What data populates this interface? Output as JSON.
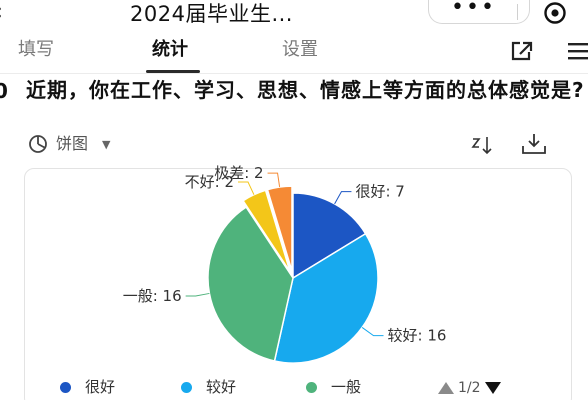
{
  "window": {
    "title": "2024届毕业生...",
    "back_icon": "back-arrow-icon",
    "more_icon": "more-dots-icon",
    "more_glyph": "•••",
    "close_icon": "target-circle-icon"
  },
  "tabs": [
    {
      "label": "填写",
      "active": false
    },
    {
      "label": "统计",
      "active": true
    },
    {
      "label": "设置",
      "active": false
    }
  ],
  "toolbar_icons": {
    "share": "share-external-icon",
    "menu": "menu-icon"
  },
  "question": {
    "number": "0",
    "text": "近期，你在工作、学习、思想、情感上等方面的总体感觉是?"
  },
  "chart_controls": {
    "type_label": "饼图",
    "type_icon": "pie-chart-icon",
    "caret_icon": "caret-down-icon",
    "caret_glyph": "▼",
    "sort_icon": "sort-icon",
    "download_icon": "download-icon"
  },
  "chart_data": {
    "type": "pie",
    "categories": [
      "很好",
      "较好",
      "一般",
      "不好",
      "极差"
    ],
    "values": [
      7,
      16,
      16,
      2,
      2
    ],
    "colors": [
      "#1c56c4",
      "#17a9ee",
      "#4fb37c",
      "#f3c619",
      "#f58a35"
    ],
    "labels": [
      "很好: 7",
      "较好: 16",
      "一般: 16",
      "不好: 2",
      "极差: 2"
    ],
    "legend_position": "bottom"
  },
  "legend": {
    "items": [
      {
        "label": "很好",
        "color": "#1c56c4"
      },
      {
        "label": "较好",
        "color": "#17a9ee"
      },
      {
        "label": "一般",
        "color": "#4fb37c"
      }
    ],
    "page_text": "1/2"
  }
}
